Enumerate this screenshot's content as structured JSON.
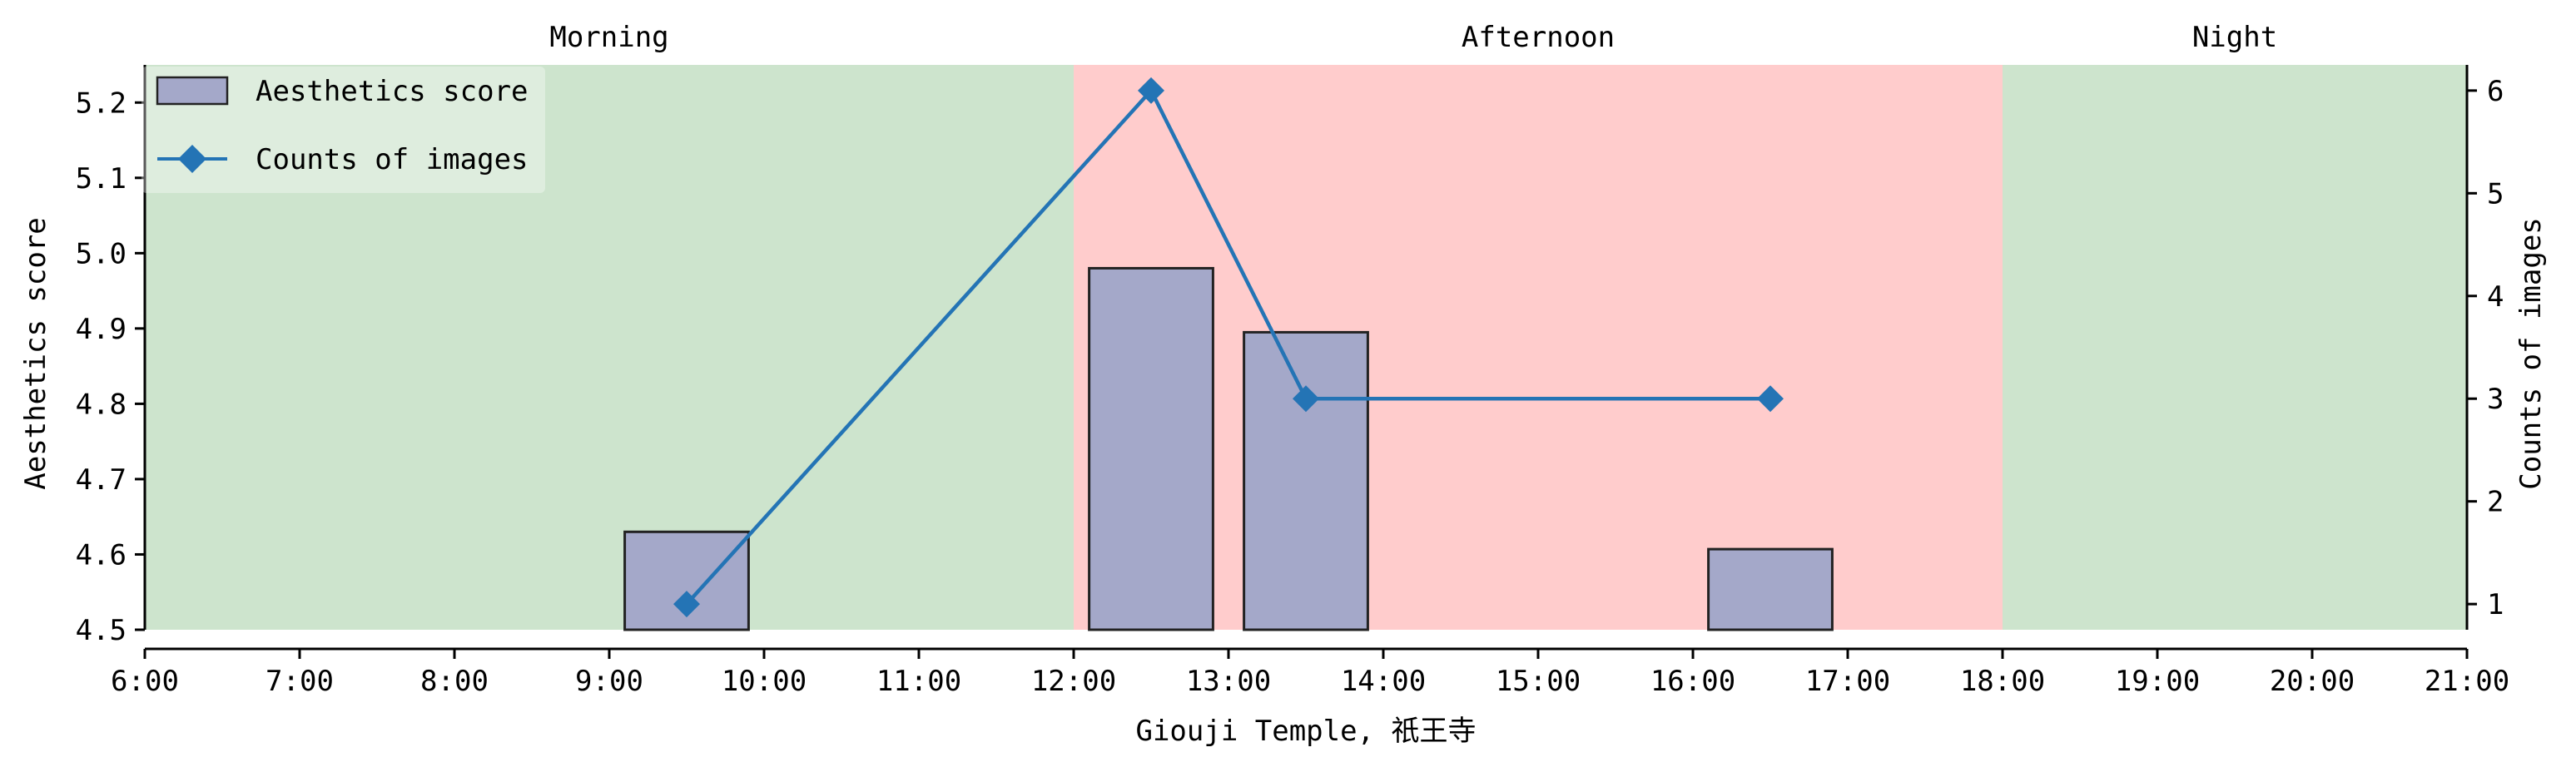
{
  "chart_data": {
    "type": "bar",
    "xlabel": "Giouji Temple, 祇王寺",
    "ylabel": "Aesthetics score",
    "y2label": "Counts of images",
    "xlim": [
      6,
      21
    ],
    "ylim": [
      4.5,
      5.25
    ],
    "y2lim": [
      0.75,
      6.25
    ],
    "x_ticks": [
      6,
      7,
      8,
      9,
      10,
      11,
      12,
      13,
      14,
      15,
      16,
      17,
      18,
      19,
      20,
      21
    ],
    "x_tick_labels": [
      "6:00",
      "7:00",
      "8:00",
      "9:00",
      "10:00",
      "11:00",
      "12:00",
      "13:00",
      "14:00",
      "15:00",
      "16:00",
      "17:00",
      "18:00",
      "19:00",
      "20:00",
      "21:00"
    ],
    "y_ticks": [
      4.5,
      4.6,
      4.7,
      4.8,
      4.9,
      5.0,
      5.1,
      5.2
    ],
    "y_tick_labels": [
      "4.5",
      "4.6",
      "4.7",
      "4.8",
      "4.9",
      "5.0",
      "5.1",
      "5.2"
    ],
    "y2_ticks": [
      1,
      2,
      3,
      4,
      5,
      6
    ],
    "y2_tick_labels": [
      "1",
      "2",
      "3",
      "4",
      "5",
      "6"
    ],
    "periods": [
      {
        "label": "Morning",
        "start": 6,
        "end": 12,
        "color": "#cde4cd"
      },
      {
        "label": "Afternoon",
        "start": 12,
        "end": 18,
        "color": "#ffcccc"
      },
      {
        "label": "Night",
        "start": 18,
        "end": 21,
        "color": "#cde4cd"
      }
    ],
    "series": [
      {
        "name": "Aesthetics score",
        "type": "bar",
        "axis": "left",
        "color": "#a4a8c9",
        "edge_color": "#222222",
        "x": [
          9.5,
          12.5,
          13.5,
          16.5
        ],
        "width": 0.8,
        "values": [
          4.63,
          4.98,
          4.895,
          4.607
        ]
      },
      {
        "name": "Counts of images",
        "type": "line",
        "axis": "right",
        "color": "#2474b5",
        "marker": "diamond",
        "x": [
          9.5,
          12.5,
          13.5,
          16.5
        ],
        "values": [
          1,
          6,
          3,
          3
        ]
      }
    ],
    "legend_position": "top-left",
    "grid": false
  }
}
